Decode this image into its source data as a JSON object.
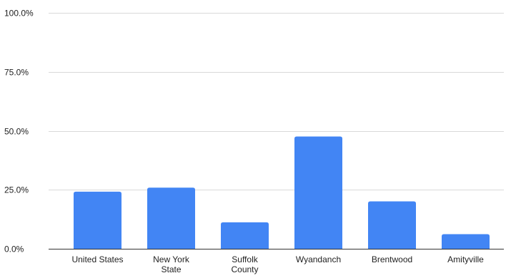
{
  "chart_data": {
    "type": "bar",
    "title": "",
    "xlabel": "",
    "ylabel": "",
    "categories": [
      [
        "United States"
      ],
      [
        "New York",
        "State"
      ],
      [
        "Suffolk",
        "County"
      ],
      [
        "Wyandanch"
      ],
      [
        "Brentwood"
      ],
      [
        "Amityville"
      ]
    ],
    "values": [
      24.2,
      25.9,
      11.2,
      47.6,
      20.1,
      6.2
    ],
    "ylim": [
      0,
      100
    ],
    "y_ticks": [
      0,
      25,
      50,
      75,
      100
    ],
    "y_tick_labels": [
      "0.0%",
      "25.0%",
      "50.0%",
      "75.0%",
      "100.0%"
    ],
    "grid": true,
    "legend": "none",
    "bar_color": "#4285f4"
  }
}
